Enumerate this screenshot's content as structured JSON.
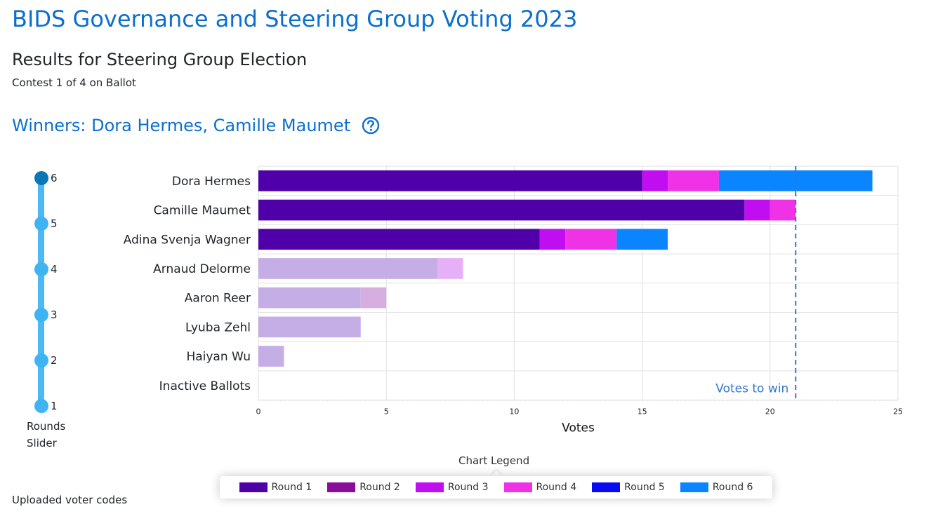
{
  "page": {
    "title": "BIDS Governance and Steering Group Voting 2023",
    "subtitle": "Results for Steering Group Election",
    "contest_info": "Contest 1 of 4 on Ballot",
    "winners": "Winners: Dora Hermes, Camille Maumet",
    "help_icon": "question-circle-icon",
    "footer_text": "Uploaded voter codes"
  },
  "slider": {
    "stops": [
      "6",
      "5",
      "4",
      "3",
      "2",
      "1"
    ],
    "current_round": 6,
    "label_line1": "Rounds",
    "label_line2": "Slider",
    "color": "#4cb8f4",
    "active_color": "#0b78b5"
  },
  "chart_data": {
    "type": "bar",
    "orientation": "horizontal",
    "stacked": true,
    "categories": [
      "Dora Hermes",
      "Camille Maumet",
      "Adina Svenja Wagner",
      "Arnaud Delorme",
      "Aaron Reer",
      "Lyuba Zehl",
      "Haiyan Wu",
      "Inactive Ballots"
    ],
    "eliminated": [
      "Arnaud Delorme",
      "Aaron Reer",
      "Lyuba Zehl",
      "Haiyan Wu"
    ],
    "series": [
      {
        "name": "Round 1",
        "color": "#4f00a8",
        "faded_color": "#c5aee6",
        "values": [
          15,
          19,
          11,
          7,
          4,
          4,
          1,
          0
        ]
      },
      {
        "name": "Round 2",
        "color": "#8a0c9a",
        "faded_color": "#d7aee0",
        "values": [
          0,
          0,
          0,
          0,
          1,
          0,
          0,
          0
        ]
      },
      {
        "name": "Round 3",
        "color": "#c00ef0",
        "faded_color": "#e6b0f7",
        "values": [
          1,
          1,
          1,
          1,
          0,
          0,
          0,
          0
        ]
      },
      {
        "name": "Round 4",
        "color": "#f032e6",
        "faded_color": "#f7b3f3",
        "values": [
          2,
          1,
          2,
          0,
          0,
          0,
          0,
          0
        ]
      },
      {
        "name": "Round 5",
        "color": "#0a0af0",
        "faded_color": "#a8a8f8",
        "values": [
          0,
          0,
          0,
          0,
          0,
          0,
          0,
          0
        ]
      },
      {
        "name": "Round 6",
        "color": "#0a85ff",
        "faded_color": "#a8d2ff",
        "values": [
          6,
          0,
          2,
          0,
          0,
          0,
          0,
          0
        ]
      }
    ],
    "xlabel": "Votes",
    "xlim": [
      0,
      25
    ],
    "xticks": [
      0,
      5,
      10,
      15,
      20,
      25
    ],
    "threshold": 21,
    "threshold_label": "Votes to win",
    "grid": true,
    "legend": {
      "title": "Chart Legend",
      "placement": "bottom"
    }
  }
}
